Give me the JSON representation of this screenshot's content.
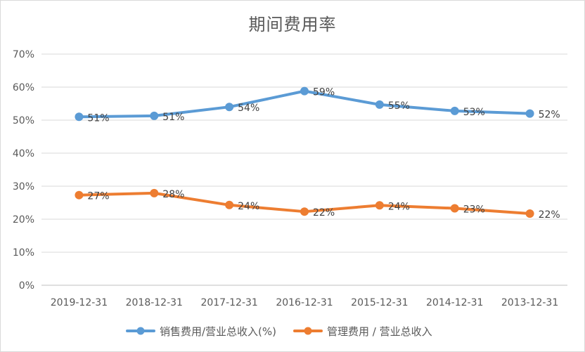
{
  "chart_data": {
    "type": "line",
    "title": "期间费用率",
    "categories": [
      "2019-12-31",
      "2018-12-31",
      "2017-12-31",
      "2016-12-31",
      "2015-12-31",
      "2014-12-31",
      "2013-12-31"
    ],
    "series": [
      {
        "name": "销售费用/营业总收入(%)",
        "values": [
          51,
          51.3,
          54,
          58.8,
          54.7,
          52.8,
          52
        ],
        "labels": [
          "51%",
          "51%",
          "54%",
          "59%",
          "55%",
          "53%",
          "52%"
        ],
        "color": "#5b9bd5"
      },
      {
        "name": "管理费用 / 营业总收入",
        "values": [
          27.3,
          27.9,
          24.3,
          22.3,
          24.2,
          23.3,
          21.7
        ],
        "labels": [
          "27%",
          "28%",
          "24%",
          "22%",
          "24%",
          "23%",
          "22%"
        ],
        "color": "#ed7d31"
      }
    ],
    "y_ticks": [
      "0%",
      "10%",
      "20%",
      "30%",
      "40%",
      "50%",
      "60%",
      "70%"
    ],
    "ylim": [
      0,
      70
    ],
    "grid": true,
    "legend_position": "bottom"
  }
}
